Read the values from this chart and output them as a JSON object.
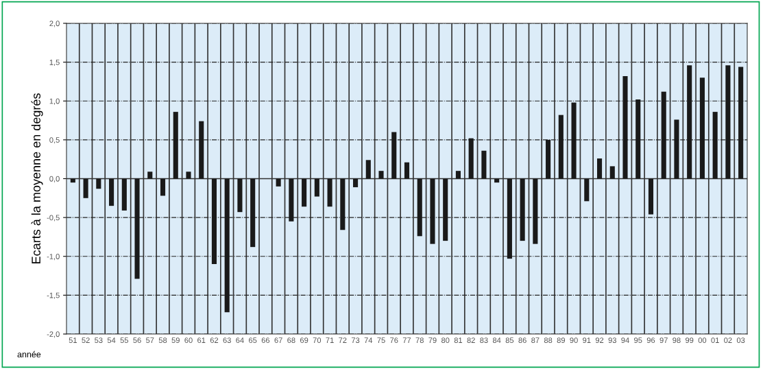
{
  "chart_data": {
    "type": "bar",
    "ylabel": "Ecarts à la moyenne en degrés",
    "xlabel": "année",
    "categories": [
      "51",
      "52",
      "53",
      "54",
      "55",
      "56",
      "57",
      "58",
      "59",
      "60",
      "61",
      "62",
      "63",
      "64",
      "65",
      "66",
      "67",
      "68",
      "69",
      "70",
      "71",
      "72",
      "73",
      "74",
      "75",
      "76",
      "77",
      "78",
      "79",
      "80",
      "81",
      "82",
      "83",
      "84",
      "85",
      "86",
      "87",
      "88",
      "89",
      "90",
      "91",
      "92",
      "93",
      "94",
      "95",
      "96",
      "97",
      "98",
      "99",
      "00",
      "01",
      "02",
      "03"
    ],
    "values": [
      -0.05,
      -0.25,
      -0.13,
      -0.35,
      -0.41,
      -1.29,
      0.09,
      -0.22,
      0.86,
      0.09,
      0.74,
      -1.1,
      -1.72,
      -0.43,
      -0.88,
      0,
      -0.1,
      -0.55,
      -0.36,
      -0.23,
      -0.36,
      -0.66,
      -0.11,
      0.24,
      0.1,
      0.6,
      0.21,
      -0.74,
      -0.84,
      -0.8,
      0.1,
      0.52,
      0.36,
      -0.05,
      -1.03,
      -0.8,
      -0.84,
      0.5,
      0.82,
      0.98,
      -0.29,
      0.26,
      0.16,
      1.32,
      1.02,
      -0.46,
      1.12,
      0.76,
      1.46,
      1.3,
      0.86,
      1.46,
      1.44
    ],
    "color": "#1a1a1a",
    "ylim": [
      -2,
      2
    ],
    "yticks": [
      {
        "value": -2,
        "label": "-2,0"
      },
      {
        "value": -1.5,
        "label": "-1,5"
      },
      {
        "value": -1,
        "label": "-1,0"
      },
      {
        "value": -0.5,
        "label": "-0,5"
      },
      {
        "value": 0,
        "label": "0,0"
      },
      {
        "value": 0.5,
        "label": "0,5"
      },
      {
        "value": 1,
        "label": "1,0"
      },
      {
        "value": 1.5,
        "label": "1,5"
      },
      {
        "value": 2,
        "label": "2,0"
      }
    ],
    "grid": true
  }
}
